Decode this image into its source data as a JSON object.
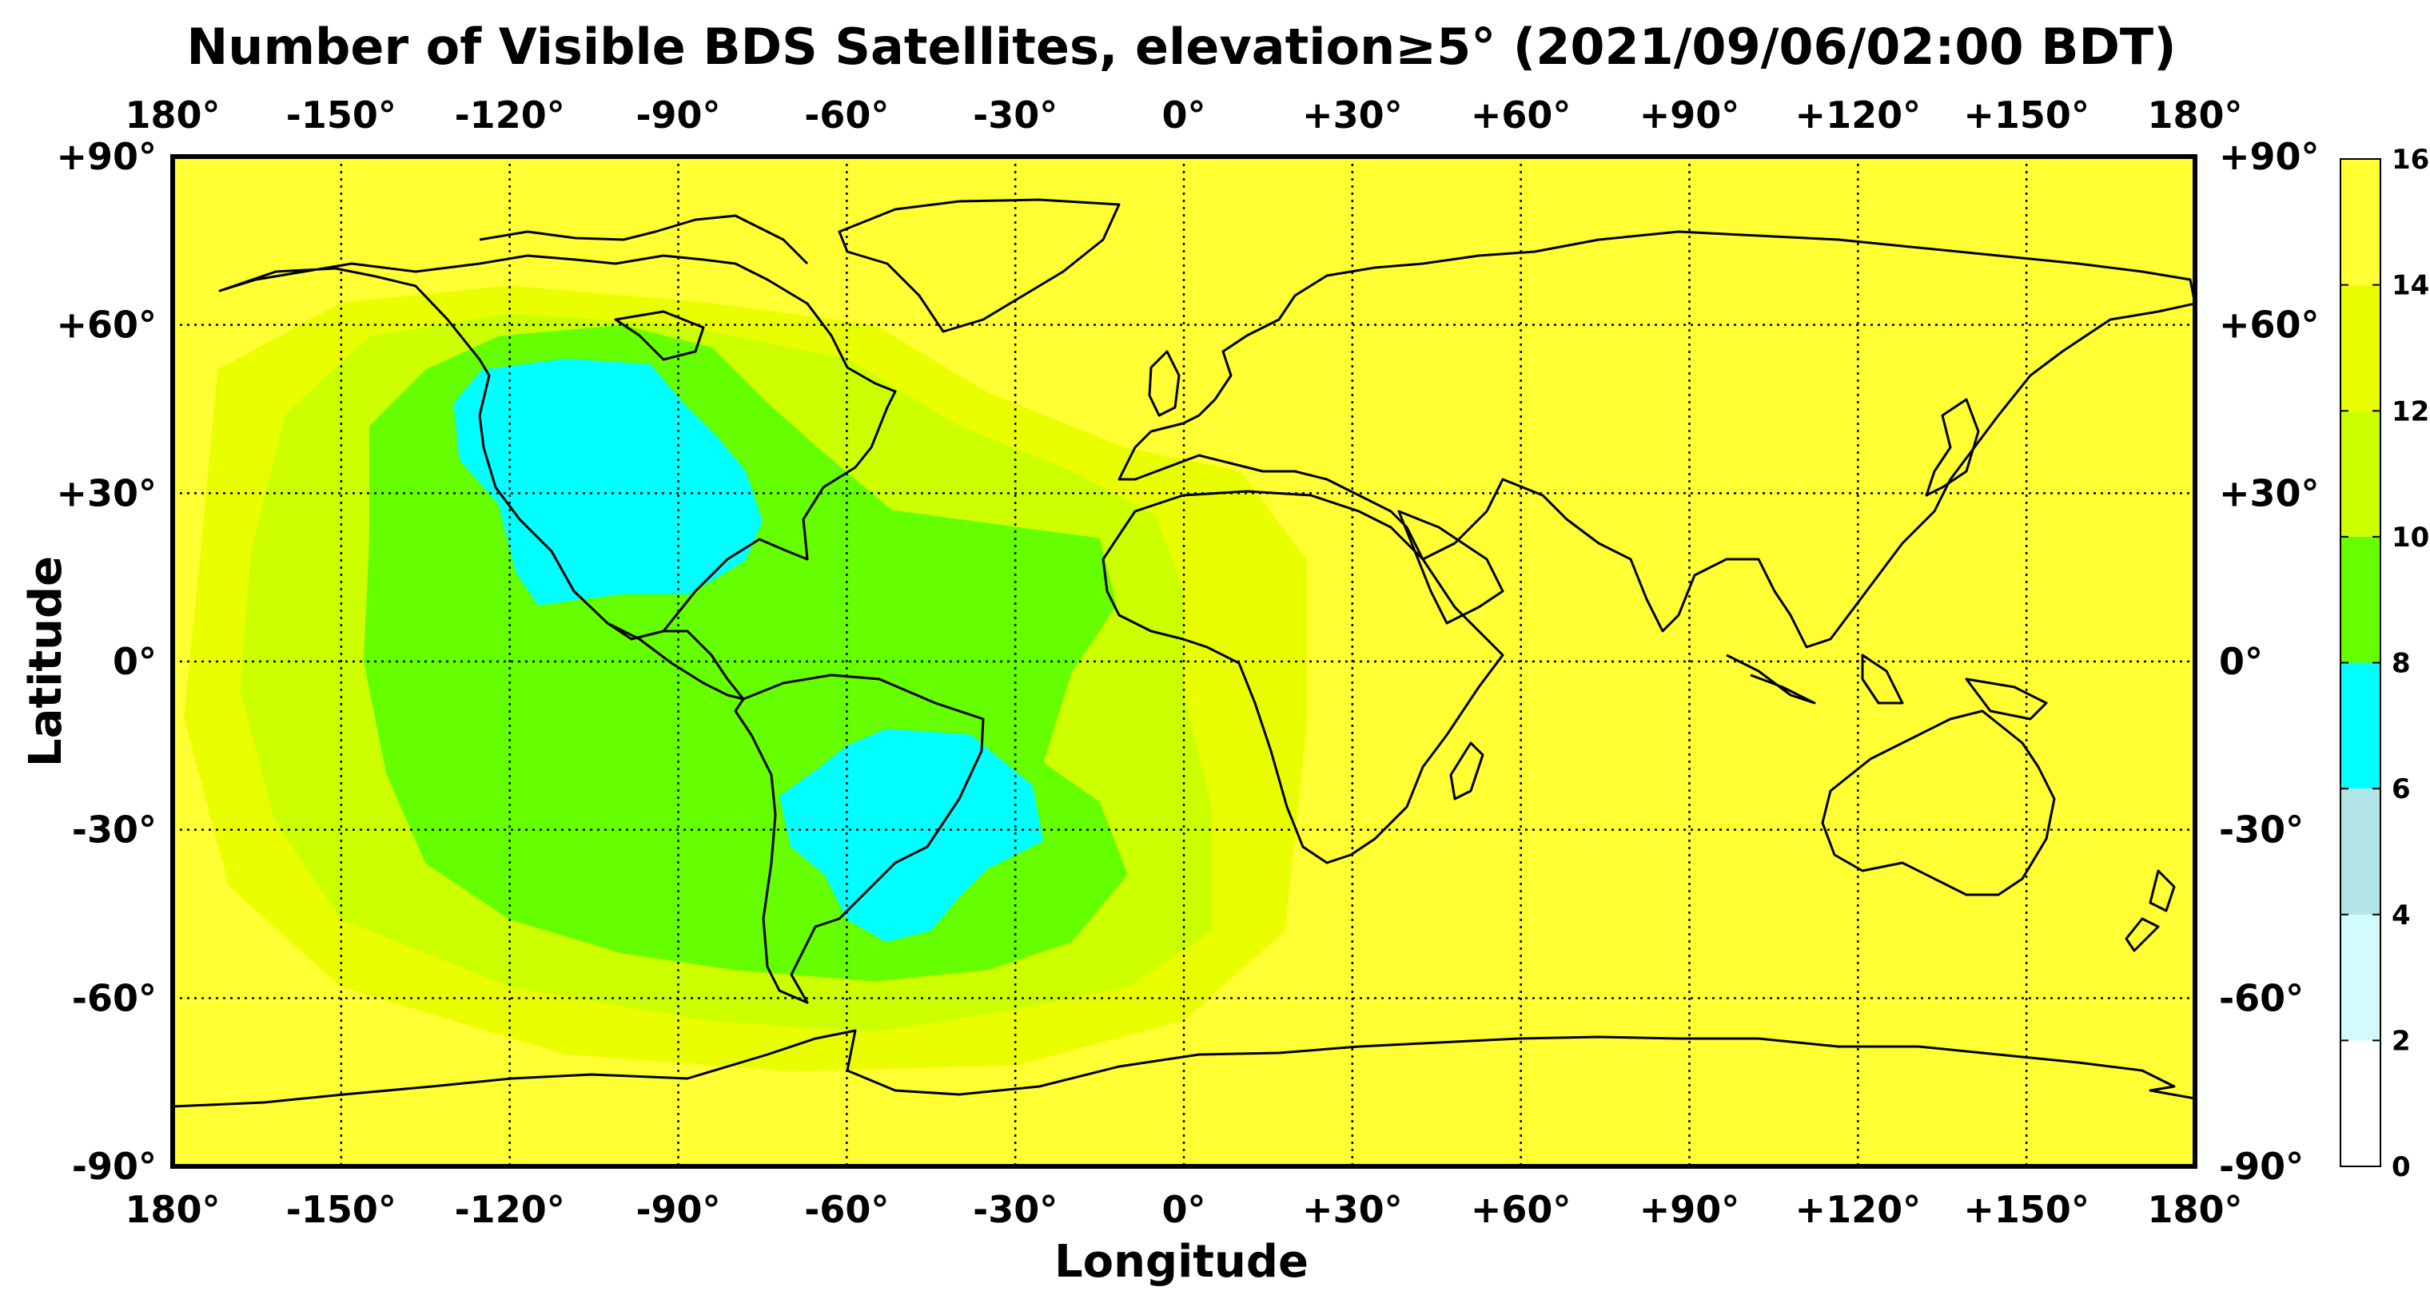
{
  "title": "Number of Visible BDS Satellites, elevation≥5° (2021/09/06/02:00 BDT)",
  "xlabel": "Longitude",
  "ylabel": "Latitude",
  "lon_ticks": [
    {
      "value": -180,
      "label": "180°"
    },
    {
      "value": -150,
      "label": "-150°"
    },
    {
      "value": -120,
      "label": "-120°"
    },
    {
      "value": -90,
      "label": "-90°"
    },
    {
      "value": -60,
      "label": "-60°"
    },
    {
      "value": -30,
      "label": "-30°"
    },
    {
      "value": 0,
      "label": "0°"
    },
    {
      "value": 30,
      "label": "+30°"
    },
    {
      "value": 60,
      "label": "+60°"
    },
    {
      "value": 90,
      "label": "+90°"
    },
    {
      "value": 120,
      "label": "+120°"
    },
    {
      "value": 150,
      "label": "+150°"
    },
    {
      "value": 180,
      "label": "180°"
    }
  ],
  "lat_ticks": [
    {
      "value": 90,
      "label": "+90°"
    },
    {
      "value": 60,
      "label": "+60°"
    },
    {
      "value": 30,
      "label": "+30°"
    },
    {
      "value": 0,
      "label": "0°"
    },
    {
      "value": -30,
      "label": "-30°"
    },
    {
      "value": -60,
      "label": "-60°"
    },
    {
      "value": -90,
      "label": "-90°"
    }
  ],
  "colorbar": {
    "ticks": [
      "0",
      "2",
      "4",
      "6",
      "8",
      "10",
      "12",
      "14",
      "16"
    ],
    "bands": [
      {
        "from": 0,
        "to": 2,
        "color": "#ffffff"
      },
      {
        "from": 2,
        "to": 4,
        "color": "#d2fbfb"
      },
      {
        "from": 4,
        "to": 6,
        "color": "#b2e5e5"
      },
      {
        "from": 6,
        "to": 8,
        "color": "#00ffff"
      },
      {
        "from": 8,
        "to": 10,
        "color": "#66ff00"
      },
      {
        "from": 10,
        "to": 12,
        "color": "#ccff00"
      },
      {
        "from": 12,
        "to": 14,
        "color": "#e9ff00"
      },
      {
        "from": 14,
        "to": 16,
        "color": "#ffff33"
      }
    ]
  },
  "chart_data": {
    "type": "heatmap",
    "projection": "equirectangular",
    "lon_range": [
      -180,
      180
    ],
    "lat_range": [
      -90,
      90
    ],
    "grid": true,
    "background_value_range": [
      14,
      16
    ],
    "regions": [
      {
        "value_range": [
          12,
          14
        ],
        "color": "#e9ff00",
        "polygon": [
          [
            -172,
            52
          ],
          [
            -150,
            64
          ],
          [
            -120,
            67
          ],
          [
            -85,
            64
          ],
          [
            -55,
            60
          ],
          [
            -35,
            48
          ],
          [
            -10,
            38
          ],
          [
            10,
            34
          ],
          [
            22,
            18
          ],
          [
            22,
            -10
          ],
          [
            18,
            -48
          ],
          [
            0,
            -64
          ],
          [
            -30,
            -72
          ],
          [
            -70,
            -73
          ],
          [
            -110,
            -70
          ],
          [
            -150,
            -58
          ],
          [
            -170,
            -40
          ],
          [
            -178,
            -10
          ],
          [
            -175,
            20
          ]
        ]
      },
      {
        "value_range": [
          10,
          12
        ],
        "color": "#ccff00",
        "polygon": [
          [
            -160,
            44
          ],
          [
            -145,
            58
          ],
          [
            -120,
            62
          ],
          [
            -90,
            60
          ],
          [
            -60,
            54
          ],
          [
            -40,
            42
          ],
          [
            -20,
            34
          ],
          [
            -5,
            26
          ],
          [
            0,
            12
          ],
          [
            0,
            -6
          ],
          [
            5,
            -26
          ],
          [
            5,
            -48
          ],
          [
            -10,
            -58
          ],
          [
            -30,
            -62
          ],
          [
            -55,
            -66
          ],
          [
            -85,
            -64
          ],
          [
            -120,
            -58
          ],
          [
            -150,
            -46
          ],
          [
            -162,
            -28
          ],
          [
            -168,
            -5
          ],
          [
            -166,
            20
          ]
        ]
      },
      {
        "value_range": [
          8,
          10
        ],
        "color": "#66ff00",
        "polygon": [
          [
            -145,
            42
          ],
          [
            -135,
            52
          ],
          [
            -122,
            58
          ],
          [
            -100,
            60
          ],
          [
            -84,
            56
          ],
          [
            -74,
            46
          ],
          [
            -65,
            38
          ],
          [
            -52,
            27
          ],
          [
            -30,
            24
          ],
          [
            -15,
            22
          ],
          [
            -12,
            10
          ],
          [
            -20,
            -2
          ],
          [
            -25,
            -18
          ],
          [
            -15,
            -25
          ],
          [
            -10,
            -38
          ],
          [
            -20,
            -50
          ],
          [
            -35,
            -55
          ],
          [
            -55,
            -57
          ],
          [
            -80,
            -55
          ],
          [
            -100,
            -52
          ],
          [
            -120,
            -46
          ],
          [
            -135,
            -36
          ],
          [
            -142,
            -20
          ],
          [
            -146,
            0
          ],
          [
            -145,
            22
          ]
        ]
      },
      {
        "value_range": [
          6,
          8
        ],
        "color": "#00ffff",
        "polygon": [
          [
            -130,
            46
          ],
          [
            -125,
            52
          ],
          [
            -110,
            54
          ],
          [
            -95,
            53
          ],
          [
            -89,
            46
          ],
          [
            -83,
            40
          ],
          [
            -78,
            34
          ],
          [
            -75,
            25
          ],
          [
            -78,
            18
          ],
          [
            -88,
            12
          ],
          [
            -100,
            12
          ],
          [
            -115,
            10
          ],
          [
            -119,
            16
          ],
          [
            -122,
            28
          ],
          [
            -129,
            36
          ]
        ]
      },
      {
        "value_range": [
          6,
          8
        ],
        "color": "#00ffff",
        "polygon": [
          [
            -60,
            -15
          ],
          [
            -53,
            -12
          ],
          [
            -38,
            -13
          ],
          [
            -27,
            -22
          ],
          [
            -25,
            -32
          ],
          [
            -35,
            -37
          ],
          [
            -40,
            -42
          ],
          [
            -45,
            -48
          ],
          [
            -53,
            -50
          ],
          [
            -60,
            -46
          ],
          [
            -64,
            -38
          ],
          [
            -70,
            -33
          ],
          [
            -72,
            -24
          ],
          [
            -65,
            -19
          ]
        ]
      }
    ]
  }
}
